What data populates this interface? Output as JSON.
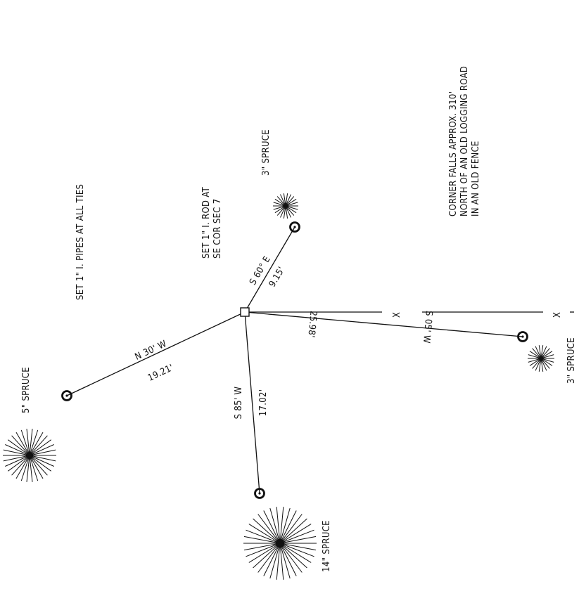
{
  "notes": {
    "pipes": "SET 1\" I. PIPES AT ALL TIES",
    "rod_line1": "SET 1\" I. ROD AT",
    "rod_line2": "SE COR SEC 7",
    "corner_line1": "CORNER FALLS APPROX. 310'",
    "corner_line2": "NORTH OF AN OLD LOGGING ROAD",
    "corner_line3": "IN AN OLD FENCE"
  },
  "ties": [
    {
      "id": "tie-nw",
      "bearing": "N 30' W",
      "distance": "19.21'",
      "tree": "5\" SPRUCE"
    },
    {
      "id": "tie-sw",
      "bearing": "S 85' W",
      "distance": "17.02'",
      "tree": "14\" SPRUCE"
    },
    {
      "id": "tie-se",
      "bearing": "S 60° E",
      "distance": "9.15'",
      "tree": "3\" SPRUCE"
    },
    {
      "id": "tie-ne",
      "bearing": "S 05' W",
      "distance": "25.98'",
      "tree": "3\" SPRUCE"
    }
  ],
  "fence": {
    "marker1": "X",
    "marker2": "X"
  },
  "colors": {
    "ink": "#111111",
    "paper": "#ffffff"
  }
}
